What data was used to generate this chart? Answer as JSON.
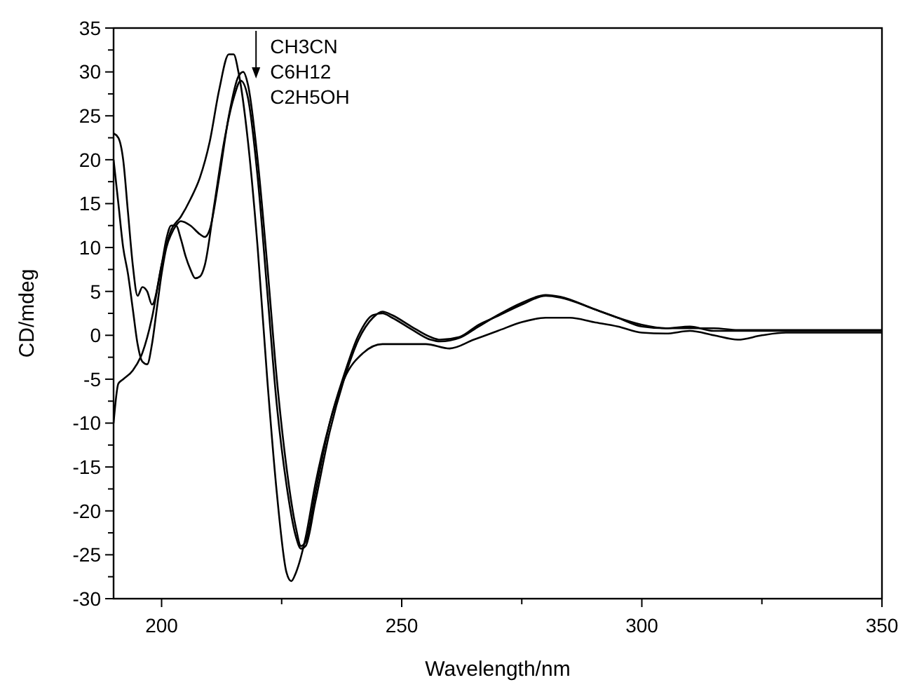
{
  "chart_data": {
    "type": "line",
    "xlabel": "Wavelength/nm",
    "ylabel": "CD/mdeg",
    "xlim": [
      190,
      350
    ],
    "ylim": [
      -30,
      35
    ],
    "xticks": [
      200,
      {
        "value": 225,
        "label": null
      },
      250,
      {
        "value": 275,
        "label": null
      },
      300,
      {
        "value": 325,
        "label": null
      },
      350
    ],
    "yticks": [
      -30,
      {
        "value": -27.5,
        "label": null
      },
      -25,
      {
        "value": -22.5,
        "label": null
      },
      -20,
      {
        "value": -17.5,
        "label": null
      },
      -15,
      {
        "value": -12.5,
        "label": null
      },
      -10,
      {
        "value": -7.5,
        "label": null
      },
      -5,
      {
        "value": -2.5,
        "label": null
      },
      0,
      {
        "value": 2.5,
        "label": null
      },
      5,
      {
        "value": 7.5,
        "label": null
      },
      10,
      {
        "value": 12.5,
        "label": null
      },
      15,
      {
        "value": 17.5,
        "label": null
      },
      20,
      {
        "value": 22.5,
        "label": null
      },
      25,
      {
        "value": 27.5,
        "label": null
      },
      30,
      {
        "value": 32.5,
        "label": null
      },
      35
    ],
    "grid": false,
    "legend": "top",
    "marker": "none",
    "line_style": "solid",
    "series": [
      {
        "name": "CH3CN",
        "color": "#000000",
        "x": [
          190,
          191,
          192,
          194,
          196,
          198,
          200,
          202,
          204,
          206,
          208,
          210,
          212,
          214,
          215,
          216,
          218,
          220,
          222,
          224,
          226,
          227,
          228,
          230,
          232,
          235,
          238,
          242,
          246,
          250,
          255,
          260,
          265,
          270,
          275,
          280,
          285,
          290,
          295,
          300,
          305,
          310,
          315,
          320,
          325,
          330,
          340,
          350
        ],
        "values": [
          -10,
          -5.5,
          -5,
          -4,
          -2,
          2,
          8,
          12,
          13.5,
          15.5,
          18,
          22,
          28,
          32,
          32,
          30,
          22,
          10,
          -5,
          -18,
          -27,
          -28,
          -27,
          -23,
          -17,
          -10,
          -5,
          -2,
          -1,
          -1,
          -1,
          -1.5,
          -0.5,
          0.5,
          1.5,
          2,
          2,
          1.5,
          1,
          0.3,
          0.2,
          0.5,
          0,
          -0.5,
          0,
          0.3,
          0.3,
          0.3
        ]
      },
      {
        "name": "C6H12",
        "color": "#000000",
        "x": [
          190,
          191,
          192,
          193,
          194,
          195,
          196,
          197,
          198,
          200,
          201,
          202,
          203,
          204,
          205,
          206,
          207,
          208,
          209,
          211,
          213,
          215,
          216.5,
          218,
          220,
          222,
          224,
          226,
          228,
          229,
          230,
          232,
          235,
          238,
          241,
          244,
          246,
          248,
          252,
          256,
          258,
          262,
          266,
          270,
          275,
          280,
          283,
          290,
          295,
          300,
          305,
          310,
          315,
          320,
          330,
          340,
          350
        ],
        "values": [
          23,
          22.5,
          20,
          14,
          8,
          4.5,
          5.5,
          5,
          3.5,
          8,
          11,
          12.5,
          12.5,
          11,
          9,
          7.5,
          6.5,
          6.7,
          8,
          15,
          22,
          27,
          29,
          27,
          18,
          5,
          -8,
          -17,
          -23,
          -24.3,
          -24,
          -19,
          -11,
          -5,
          -0.5,
          2,
          2.7,
          2.3,
          1,
          -0.2,
          -0.5,
          -0.2,
          1.2,
          2.2,
          3.5,
          4.5,
          4.3,
          3,
          2,
          1,
          0.8,
          1,
          0.5,
          0.5,
          0.5,
          0.5,
          0.5
        ]
      },
      {
        "name": "C2H5OH",
        "color": "#000000",
        "x": [
          190,
          191,
          192,
          193,
          194,
          195,
          196,
          197,
          198,
          199,
          200,
          201,
          202,
          203,
          204,
          206,
          208,
          209,
          210,
          212,
          214,
          216,
          217,
          218,
          220,
          222,
          224,
          226,
          228,
          229,
          230,
          232,
          235,
          238,
          241,
          244,
          246,
          248,
          252,
          256,
          258,
          262,
          266,
          270,
          275,
          280,
          283,
          290,
          295,
          300,
          305,
          310,
          315,
          320,
          330,
          340,
          350
        ],
        "values": [
          20,
          15,
          10,
          7,
          3,
          -1,
          -3,
          -3.3,
          -1,
          3,
          7,
          10,
          11.5,
          12.5,
          13,
          12.5,
          11.5,
          11.2,
          12,
          18,
          25,
          29.5,
          30,
          28.5,
          20,
          8,
          -5,
          -15,
          -22,
          -24,
          -23.5,
          -18,
          -10,
          -4.5,
          0,
          2.3,
          2.5,
          2,
          0.7,
          -0.5,
          -0.7,
          -0.3,
          1,
          2.3,
          3.7,
          4.6,
          4.4,
          3,
          2,
          1.2,
          0.8,
          0.8,
          0.8,
          0.6,
          0.6,
          0.6,
          0.6
        ]
      }
    ]
  }
}
